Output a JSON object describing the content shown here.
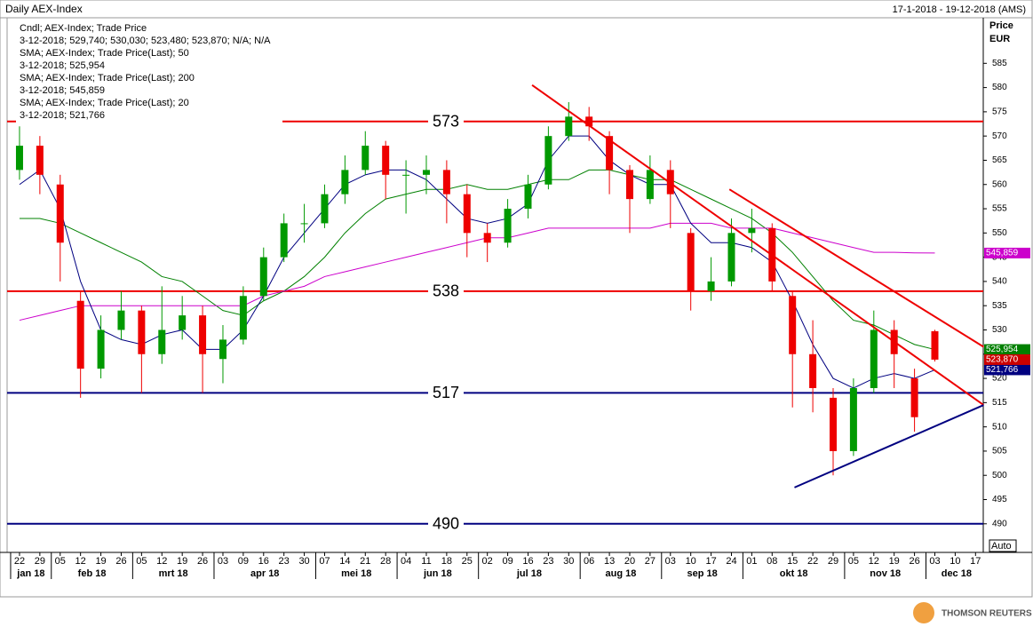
{
  "chart_data": {
    "type": "candlestick",
    "title": "Daily AEX-Index",
    "date_range": "17-1-2018 - 19-12-2018 (AMS)",
    "y_axis_label": "Price",
    "y_unit": "EUR",
    "scale_label": "Auto",
    "logo": "THOMSON REUTERS",
    "legend_lines": [
      {
        "text": "Cndl; AEX-Index; Trade Price",
        "color": "#cc0000"
      },
      {
        "text": "3-12-2018; 529,740; 530,030; 523,480; 523,870;",
        "color": "#cc0000",
        "suffix": "N/A; N/A"
      },
      {
        "text": "SMA; AEX-Index; Trade Price(Last);  50",
        "color": "#008000"
      },
      {
        "text": "3-12-2018; 525,954",
        "color": "#008000"
      },
      {
        "text": "SMA; AEX-Index; Trade Price(Last);  200",
        "color": "#cc00cc"
      },
      {
        "text": "3-12-2018; 545,859",
        "color": "#cc00cc"
      },
      {
        "text": "SMA; AEX-Index; Trade Price(Last);  20",
        "color": "#000080"
      },
      {
        "text": "3-12-2018; 521,766",
        "color": "#000080"
      }
    ],
    "xticks": [
      "22",
      "29",
      "05",
      "12",
      "19",
      "26",
      "05",
      "12",
      "19",
      "26",
      "03",
      "09",
      "16",
      "23",
      "30",
      "07",
      "14",
      "21",
      "28",
      "04",
      "11",
      "18",
      "25",
      "02",
      "09",
      "16",
      "23",
      "30",
      "06",
      "13",
      "20",
      "27",
      "03",
      "10",
      "17",
      "24",
      "01",
      "08",
      "15",
      "22",
      "29",
      "05",
      "12",
      "19",
      "26",
      "03",
      "10",
      "17"
    ],
    "months": [
      "jan 18",
      "feb 18",
      "mrt 18",
      "apr 18",
      "mei 18",
      "jun 18",
      "jul 18",
      "aug 18",
      "sep 18",
      "okt 18",
      "nov 18",
      "dec 18"
    ],
    "month_first_tick": [
      0,
      2,
      6,
      10,
      15,
      19,
      23,
      28,
      32,
      36,
      41,
      45
    ],
    "xlim": [
      -0.61,
      47.38
    ],
    "ylim": [
      484.1,
      594.4
    ],
    "yticks": [
      490,
      495,
      500,
      505,
      510,
      515,
      520,
      525,
      530,
      535,
      540,
      545,
      550,
      555,
      560,
      565,
      570,
      575,
      580,
      585
    ],
    "up_color": "#009900",
    "down_color": "#ee0000",
    "candles": [
      {
        "x": 0,
        "open": 563,
        "high": 572,
        "low": 561,
        "close": 568
      },
      {
        "x": 1,
        "open": 568,
        "high": 570,
        "low": 558,
        "close": 562
      },
      {
        "x": 2,
        "open": 560,
        "high": 562,
        "low": 540,
        "close": 548
      },
      {
        "x": 3,
        "open": 536,
        "high": 538,
        "low": 516,
        "close": 522
      },
      {
        "x": 4,
        "open": 522,
        "high": 533,
        "low": 520,
        "close": 530
      },
      {
        "x": 5,
        "open": 530,
        "high": 538,
        "low": 528,
        "close": 534
      },
      {
        "x": 6,
        "open": 534,
        "high": 535,
        "low": 517,
        "close": 525
      },
      {
        "x": 7,
        "open": 525,
        "high": 539,
        "low": 523,
        "close": 530
      },
      {
        "x": 8,
        "open": 530,
        "high": 537,
        "low": 528,
        "close": 533
      },
      {
        "x": 9,
        "open": 533,
        "high": 535,
        "low": 517,
        "close": 525
      },
      {
        "x": 10,
        "open": 524,
        "high": 531,
        "low": 519,
        "close": 528
      },
      {
        "x": 11,
        "open": 528,
        "high": 539,
        "low": 527,
        "close": 537
      },
      {
        "x": 12,
        "open": 537,
        "high": 547,
        "low": 536,
        "close": 545
      },
      {
        "x": 13,
        "open": 545,
        "high": 554,
        "low": 544,
        "close": 552
      },
      {
        "x": 14,
        "open": 552,
        "high": 556,
        "low": 548,
        "close": 552
      },
      {
        "x": 15,
        "open": 552,
        "high": 560,
        "low": 551,
        "close": 558
      },
      {
        "x": 16,
        "open": 558,
        "high": 566,
        "low": 556,
        "close": 563
      },
      {
        "x": 17,
        "open": 563,
        "high": 571,
        "low": 562,
        "close": 568
      },
      {
        "x": 18,
        "open": 568,
        "high": 569,
        "low": 557,
        "close": 562
      },
      {
        "x": 19,
        "open": 562,
        "high": 565,
        "low": 554,
        "close": 562
      },
      {
        "x": 20,
        "open": 562,
        "high": 566,
        "low": 558,
        "close": 563
      },
      {
        "x": 21,
        "open": 563,
        "high": 565,
        "low": 552,
        "close": 558
      },
      {
        "x": 22,
        "open": 558,
        "high": 560,
        "low": 545,
        "close": 550
      },
      {
        "x": 23,
        "open": 550,
        "high": 552,
        "low": 544,
        "close": 548
      },
      {
        "x": 24,
        "open": 548,
        "high": 557,
        "low": 547,
        "close": 555
      },
      {
        "x": 25,
        "open": 555,
        "high": 562,
        "low": 553,
        "close": 560
      },
      {
        "x": 26,
        "open": 560,
        "high": 572,
        "low": 559,
        "close": 570
      },
      {
        "x": 27,
        "open": 570,
        "high": 577,
        "low": 569,
        "close": 574
      },
      {
        "x": 28,
        "open": 574,
        "high": 576,
        "low": 569,
        "close": 572
      },
      {
        "x": 29,
        "open": 570,
        "high": 571,
        "low": 558,
        "close": 563
      },
      {
        "x": 30,
        "open": 563,
        "high": 564,
        "low": 550,
        "close": 557
      },
      {
        "x": 31,
        "open": 557,
        "high": 566,
        "low": 556,
        "close": 563
      },
      {
        "x": 32,
        "open": 563,
        "high": 565,
        "low": 551,
        "close": 558
      },
      {
        "x": 33,
        "open": 550,
        "high": 551,
        "low": 534,
        "close": 538
      },
      {
        "x": 34,
        "open": 538,
        "high": 545,
        "low": 536,
        "close": 540
      },
      {
        "x": 35,
        "open": 540,
        "high": 553,
        "low": 539,
        "close": 550
      },
      {
        "x": 36,
        "open": 550,
        "high": 555,
        "low": 546,
        "close": 551
      },
      {
        "x": 37,
        "open": 551,
        "high": 552,
        "low": 538,
        "close": 540
      },
      {
        "x": 38,
        "open": 537,
        "high": 538,
        "low": 514,
        "close": 525
      },
      {
        "x": 39,
        "open": 525,
        "high": 532,
        "low": 513,
        "close": 518
      },
      {
        "x": 40,
        "open": 516,
        "high": 518,
        "low": 500,
        "close": 505
      },
      {
        "x": 41,
        "open": 505,
        "high": 520,
        "low": 504,
        "close": 518
      },
      {
        "x": 42,
        "open": 518,
        "high": 534,
        "low": 517,
        "close": 530
      },
      {
        "x": 43,
        "open": 530,
        "high": 532,
        "low": 518,
        "close": 525
      },
      {
        "x": 44,
        "open": 520,
        "high": 522,
        "low": 509,
        "close": 512
      },
      {
        "x": 45,
        "open": 529.74,
        "high": 530.03,
        "low": 523.48,
        "close": 523.87
      }
    ],
    "series": [
      {
        "name": "SMA 50",
        "color": "#008000",
        "values": [
          553,
          553,
          552,
          550,
          548,
          546,
          544,
          541,
          540,
          537,
          534,
          533,
          536,
          538,
          541,
          545,
          550,
          554,
          557,
          558,
          559,
          559,
          560,
          559,
          559,
          560,
          561,
          561,
          563,
          563,
          562,
          561,
          561,
          559,
          557,
          555,
          553,
          550,
          546,
          541,
          536,
          532,
          531,
          529,
          527,
          525.954
        ],
        "value_label": "525,954"
      },
      {
        "name": "SMA 200",
        "color": "#cc00cc",
        "values": [
          532,
          533,
          534,
          535,
          535,
          535,
          535,
          535,
          535,
          535,
          535,
          535,
          537,
          538,
          539,
          541,
          542,
          543,
          544,
          545,
          546,
          547,
          548,
          549,
          549,
          550,
          551,
          551,
          551,
          551,
          551,
          551,
          552,
          552,
          552,
          551,
          551,
          551,
          550,
          549,
          548,
          547,
          546,
          546,
          545.9,
          545.859
        ],
        "value_label": "545,859"
      },
      {
        "name": "SMA 20",
        "color": "#000080",
        "values": [
          560,
          563,
          555,
          540,
          530,
          528,
          527,
          529,
          530,
          526,
          526,
          530,
          537,
          545,
          550,
          555,
          560,
          562,
          563,
          563,
          561,
          557,
          553,
          552,
          553,
          556,
          565,
          570,
          570,
          565,
          562,
          560,
          560,
          552,
          548,
          548,
          547,
          544,
          536,
          527,
          520,
          518,
          520,
          521,
          520,
          521.766
        ],
        "value_label": "521,766"
      }
    ],
    "last_close": {
      "value": 523.87,
      "label": "523,870",
      "color": "#cc0000"
    },
    "levels": [
      {
        "value": 573,
        "color": "#ee0000"
      },
      {
        "value": 538,
        "color": "#ee0000"
      },
      {
        "value": 517,
        "color": "#000080"
      },
      {
        "value": 490,
        "color": "#000080"
      }
    ],
    "trendlines": [
      {
        "x": [
          25.2,
          47.4
        ],
        "y": [
          580.5,
          514.5
        ],
        "color": "#ee0000"
      },
      {
        "x": [
          34.9,
          47.4
        ],
        "y": [
          559,
          526.5
        ],
        "color": "#ee0000"
      },
      {
        "x": [
          38.1,
          47.4
        ],
        "y": [
          497.5,
          514.5
        ],
        "color": "#000080"
      }
    ]
  }
}
